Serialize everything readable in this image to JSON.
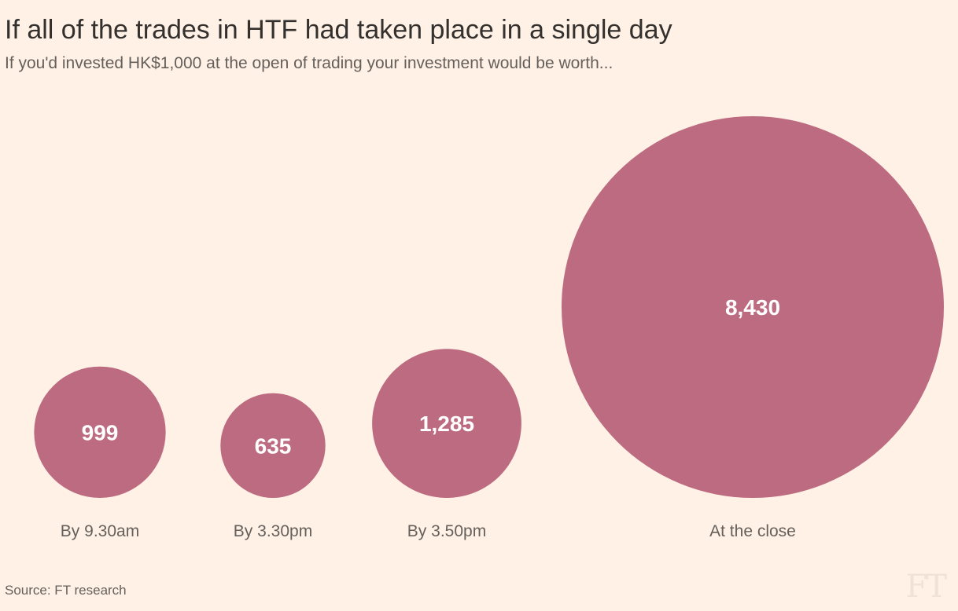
{
  "title": "If all of the trades in HTF had taken place in a single day",
  "subtitle": "If you'd invested HK$1,000 at the open of trading your investment would be worth...",
  "source": "Source: FT research",
  "logo": "FT",
  "colors": {
    "background": "#fff1e5",
    "bubble": "#bd6b80",
    "text": "#33302e",
    "muted": "#66605c"
  },
  "chart_data": {
    "type": "bubble",
    "categories": [
      "By 9.30am",
      "By 3.30pm",
      "By 3.50pm",
      "At the close"
    ],
    "values": [
      999,
      635,
      1285,
      8430
    ],
    "value_labels": [
      "999",
      "635",
      "1,285",
      "8,430"
    ],
    "unit": "HK$",
    "title": "If all of the trades in HTF had taken place in a single day",
    "subtitle": "If you'd invested HK$1,000 at the open of trading your investment would be worth...",
    "grid": false,
    "legend": "none"
  }
}
